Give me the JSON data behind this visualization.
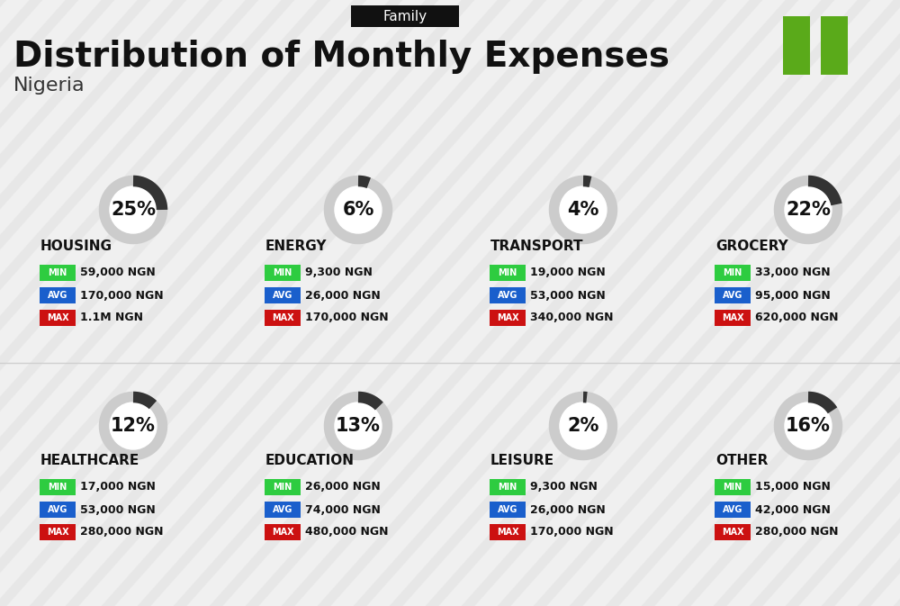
{
  "title": "Distribution of Monthly Expenses",
  "subtitle": "Nigeria",
  "tag": "Family",
  "bg_color": "#f0f0f0",
  "categories": [
    {
      "name": "HOUSING",
      "pct": 25,
      "col": 0,
      "row": 0,
      "min": "59,000 NGN",
      "avg": "170,000 NGN",
      "max": "1.1M NGN"
    },
    {
      "name": "ENERGY",
      "pct": 6,
      "col": 1,
      "row": 0,
      "min": "9,300 NGN",
      "avg": "26,000 NGN",
      "max": "170,000 NGN"
    },
    {
      "name": "TRANSPORT",
      "pct": 4,
      "col": 2,
      "row": 0,
      "min": "19,000 NGN",
      "avg": "53,000 NGN",
      "max": "340,000 NGN"
    },
    {
      "name": "GROCERY",
      "pct": 22,
      "col": 3,
      "row": 0,
      "min": "33,000 NGN",
      "avg": "95,000 NGN",
      "max": "620,000 NGN"
    },
    {
      "name": "HEALTHCARE",
      "pct": 12,
      "col": 0,
      "row": 1,
      "min": "17,000 NGN",
      "avg": "53,000 NGN",
      "max": "280,000 NGN"
    },
    {
      "name": "EDUCATION",
      "pct": 13,
      "col": 1,
      "row": 1,
      "min": "26,000 NGN",
      "avg": "74,000 NGN",
      "max": "480,000 NGN"
    },
    {
      "name": "LEISURE",
      "pct": 2,
      "col": 2,
      "row": 1,
      "min": "9,300 NGN",
      "avg": "26,000 NGN",
      "max": "170,000 NGN"
    },
    {
      "name": "OTHER",
      "pct": 16,
      "col": 3,
      "row": 1,
      "min": "15,000 NGN",
      "avg": "42,000 NGN",
      "max": "280,000 NGN"
    }
  ],
  "color_min": "#2ecc40",
  "color_avg": "#1a5fcc",
  "color_max": "#cc1111",
  "donut_color": "#333333",
  "donut_bg": "#cccccc",
  "label_color": "#ffffff",
  "tag_bg": "#111111",
  "tag_color": "#ffffff",
  "nigeria_green": "#5aaa1a"
}
